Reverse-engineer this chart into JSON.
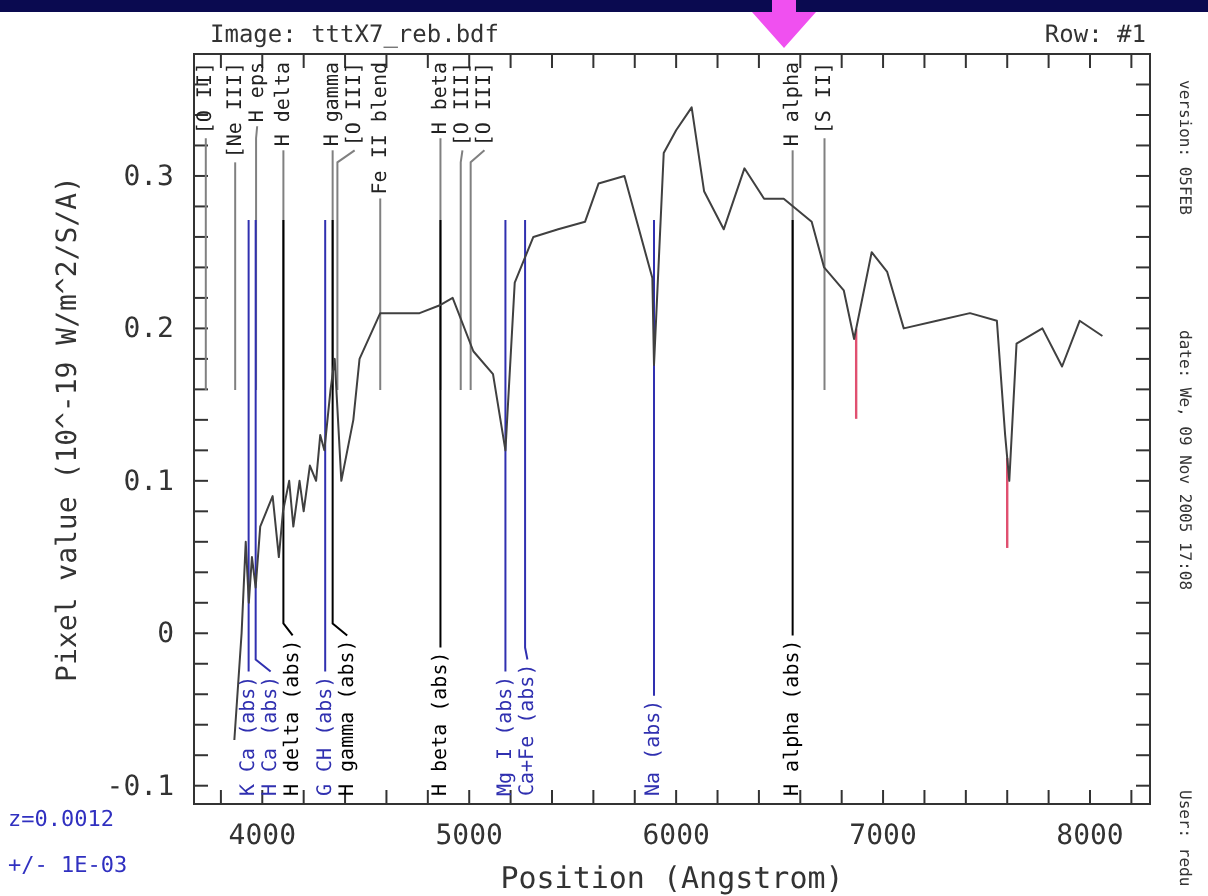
{
  "chart_data": {
    "type": "line",
    "title": "Image: tttX7_reb.bdf",
    "xlabel": "Position (Angstrom)",
    "ylabel": "Pixel value (10^-19 W/m^2/S/A)",
    "xlim": [
      3670,
      8290
    ],
    "ylim": [
      -0.112,
      0.38
    ],
    "xticks": [
      {
        "value": 3800,
        "label": null
      },
      4000,
      {
        "value": 4200,
        "label": null
      },
      {
        "value": 4400,
        "label": null
      },
      {
        "value": 4600,
        "label": null
      },
      {
        "value": 4800,
        "label": null
      },
      5000,
      {
        "value": 5200,
        "label": null
      },
      {
        "value": 5400,
        "label": null
      },
      {
        "value": 5600,
        "label": null
      },
      {
        "value": 5800,
        "label": null
      },
      6000,
      {
        "value": 6200,
        "label": null
      },
      {
        "value": 6400,
        "label": null
      },
      {
        "value": 6600,
        "label": null
      },
      {
        "value": 6800,
        "label": null
      },
      7000,
      {
        "value": 7200,
        "label": null
      },
      {
        "value": 7400,
        "label": null
      },
      {
        "value": 7600,
        "label": null
      },
      {
        "value": 7800,
        "label": null
      },
      8000,
      {
        "value": 8200,
        "label": null
      }
    ],
    "yticks": [
      {
        "value": -0.1,
        "label": "-0.1"
      },
      {
        "value": -0.08,
        "label": null
      },
      {
        "value": -0.06,
        "label": null
      },
      {
        "value": -0.04,
        "label": null
      },
      {
        "value": -0.02,
        "label": null
      },
      0,
      {
        "value": 0.02,
        "label": null
      },
      {
        "value": 0.04,
        "label": null
      },
      {
        "value": 0.06,
        "label": null
      },
      {
        "value": 0.08,
        "label": null
      },
      {
        "value": 0.1,
        "label": "0.1"
      },
      {
        "value": 0.12,
        "label": null
      },
      {
        "value": 0.14,
        "label": null
      },
      {
        "value": 0.16,
        "label": null
      },
      {
        "value": 0.18,
        "label": null
      },
      {
        "value": 0.2,
        "label": "0.2"
      },
      {
        "value": 0.22,
        "label": null
      },
      {
        "value": 0.24,
        "label": null
      },
      {
        "value": 0.26,
        "label": null
      },
      {
        "value": 0.28,
        "label": null
      },
      {
        "value": 0.3,
        "label": "0.3"
      },
      {
        "value": 0.32,
        "label": null
      },
      {
        "value": 0.34,
        "label": null
      },
      {
        "value": 0.36,
        "label": null
      }
    ],
    "grid": false,
    "marker": "none",
    "line_style": "solid",
    "x": [
      3865,
      3900,
      3920,
      3935,
      3950,
      3968,
      3990,
      4020,
      4050,
      4080,
      4100,
      4130,
      4150,
      4180,
      4200,
      4230,
      4260,
      4280,
      4300,
      4330,
      4350,
      4382,
      4440,
      4470,
      4570,
      4660,
      4760,
      4855,
      4920,
      5020,
      5115,
      5175,
      5220,
      5310,
      5430,
      5560,
      5625,
      5750,
      5885,
      5893,
      5940,
      6000,
      6075,
      6135,
      6230,
      6330,
      6425,
      6520,
      6655,
      6715,
      6810,
      6860,
      6945,
      7020,
      7100,
      7260,
      7420,
      7550,
      7590,
      7610,
      7645,
      7770,
      7865,
      7950,
      8060
    ],
    "series": [
      {
        "color": "#404040",
        "values": [
          -0.07,
          0.0,
          0.06,
          0.02,
          0.05,
          0.03,
          0.07,
          0.08,
          0.09,
          0.05,
          0.08,
          0.1,
          0.07,
          0.1,
          0.08,
          0.11,
          0.1,
          0.13,
          0.12,
          0.16,
          0.18,
          0.1,
          0.14,
          0.18,
          0.21,
          0.21,
          0.21,
          0.215,
          0.22,
          0.185,
          0.17,
          0.12,
          0.23,
          0.26,
          0.265,
          0.27,
          0.295,
          0.3,
          0.233,
          0.176,
          0.315,
          0.33,
          0.345,
          0.29,
          0.265,
          0.305,
          0.285,
          0.285,
          0.27,
          0.24,
          0.225,
          0.193,
          0.25,
          0.237,
          0.2,
          0.205,
          0.21,
          0.205,
          0.13,
          0.1,
          0.19,
          0.2,
          0.175,
          0.205,
          0.195
        ]
      }
    ],
    "ref_lines": [
      {
        "axis": "x",
        "value": 3727,
        "label": "[O II]",
        "color": "#808080"
      },
      {
        "axis": "x",
        "value": 3869,
        "label": "[Ne III]",
        "color": "#808080"
      },
      {
        "axis": "x",
        "value": 3970,
        "label": "H eps",
        "color": "#808080"
      },
      {
        "axis": "x",
        "value": 4102,
        "label": "H delta",
        "color": "#808080"
      },
      {
        "axis": "x",
        "value": 4340,
        "label": "H gamma",
        "color": "#808080"
      },
      {
        "axis": "x",
        "value": 4363,
        "label": "[O III]",
        "color": "#808080"
      },
      {
        "axis": "x",
        "value": 4570,
        "label": "Fe II blend",
        "color": "#808080"
      },
      {
        "axis": "x",
        "value": 4861,
        "label": "H beta",
        "color": "#808080"
      },
      {
        "axis": "x",
        "value": 4959,
        "label": "[O III]",
        "color": "#808080"
      },
      {
        "axis": "x",
        "value": 5007,
        "label": "[O III]",
        "color": "#808080"
      },
      {
        "axis": "x",
        "value": 6563,
        "label": "H alpha",
        "color": "#808080"
      },
      {
        "axis": "x",
        "value": 6717,
        "label": "[S II]",
        "color": "#808080"
      },
      {
        "axis": "x",
        "value": 3934,
        "label": "K Ca (abs)",
        "color": "#3030b0"
      },
      {
        "axis": "x",
        "value": 3968,
        "label": "H Ca (abs)",
        "color": "#3030b0"
      },
      {
        "axis": "x",
        "value": 4102,
        "label": "H delta (abs)",
        "color": "#000000"
      },
      {
        "axis": "x",
        "value": 4304,
        "label": "G CH (abs)",
        "color": "#3030b0"
      },
      {
        "axis": "x",
        "value": 4340,
        "label": "H gamma (abs)",
        "color": "#000000"
      },
      {
        "axis": "x",
        "value": 4861,
        "label": "H beta (abs)",
        "color": "#000000"
      },
      {
        "axis": "x",
        "value": 5175,
        "label": "Mg I (abs)",
        "color": "#3030b0"
      },
      {
        "axis": "x",
        "value": 5270,
        "label": "Ca+Fe (abs)",
        "color": "#3030b0"
      },
      {
        "axis": "x",
        "value": 5893,
        "label": "Na (abs)",
        "color": "#3030b0"
      },
      {
        "axis": "x",
        "value": 6563,
        "label": "H alpha (abs)",
        "color": "#000000"
      },
      {
        "axis": "x",
        "value": 6870,
        "label": null,
        "color": "#e05070"
      },
      {
        "axis": "x",
        "value": 7600,
        "label": null,
        "color": "#e05070"
      }
    ],
    "annotations": [
      "Row: #1",
      "z=0.0012",
      "+/- 1E-03",
      "version: 05FEB",
      "date: We, 09 Nov 2005 17:08",
      "User: redu"
    ]
  }
}
